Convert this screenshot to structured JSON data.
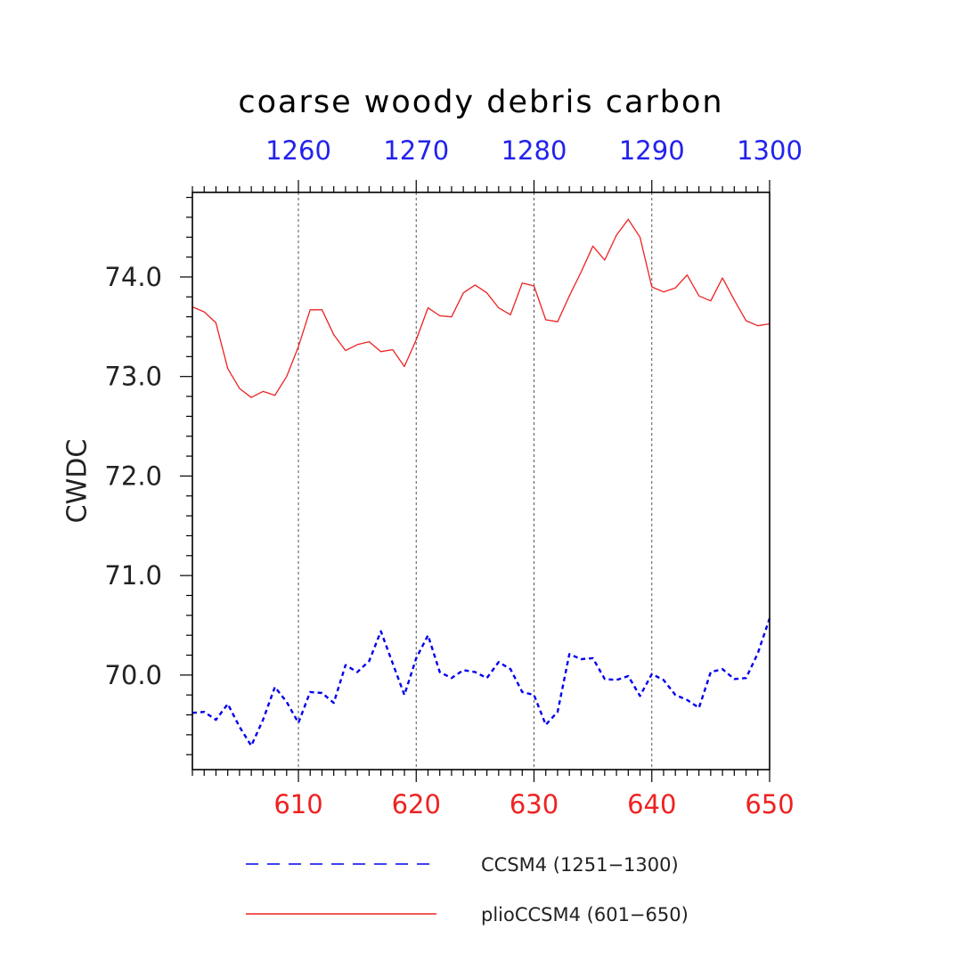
{
  "chart_data": {
    "type": "line",
    "title": "coarse woody debris carbon",
    "ylabel": "CWDC",
    "xlabel": "",
    "x_bottom": {
      "range": [
        601,
        650
      ],
      "ticks": [
        610,
        620,
        630,
        640,
        650
      ],
      "tick_labels": [
        "610",
        "620",
        "630",
        "640",
        "650"
      ],
      "color": "#ee2222"
    },
    "x_top": {
      "range": [
        1251,
        1300
      ],
      "ticks": [
        1260,
        1270,
        1280,
        1290,
        1300
      ],
      "tick_labels": [
        "1260",
        "1270",
        "1280",
        "1290",
        "1300"
      ],
      "color": "#2222ee"
    },
    "ylim": [
      69.05,
      74.85
    ],
    "yticks": [
      70.0,
      71.0,
      72.0,
      73.0,
      74.0
    ],
    "ytick_labels": [
      "70.0",
      "71.0",
      "72.0",
      "73.0",
      "74.0"
    ],
    "grid": "vertical dashed at major x ticks",
    "legend_placement": "bottom",
    "series": [
      {
        "name": "CCSM4 (1251−1300)",
        "color": "#0000ee",
        "style": "dashed",
        "axis": "top",
        "x": [
          1251,
          1252,
          1253,
          1254,
          1255,
          1256,
          1257,
          1258,
          1259,
          1260,
          1261,
          1262,
          1263,
          1264,
          1265,
          1266,
          1267,
          1268,
          1269,
          1270,
          1271,
          1272,
          1273,
          1274,
          1275,
          1276,
          1277,
          1278,
          1279,
          1280,
          1281,
          1282,
          1283,
          1284,
          1285,
          1286,
          1287,
          1288,
          1289,
          1290,
          1291,
          1292,
          1293,
          1294,
          1295,
          1296,
          1297,
          1298,
          1299,
          1300
        ],
        "values": [
          69.62,
          69.63,
          69.55,
          69.71,
          69.48,
          69.29,
          69.55,
          69.88,
          69.73,
          69.52,
          69.83,
          69.82,
          69.72,
          70.1,
          70.03,
          70.14,
          70.44,
          70.12,
          69.8,
          70.17,
          70.4,
          70.03,
          69.97,
          70.05,
          70.03,
          69.97,
          70.13,
          70.06,
          69.83,
          69.8,
          69.5,
          69.63,
          70.21,
          70.16,
          70.17,
          69.96,
          69.95,
          69.99,
          69.79,
          70.01,
          69.95,
          69.8,
          69.75,
          69.67,
          70.03,
          70.06,
          69.96,
          69.97,
          70.22,
          70.57
        ]
      },
      {
        "name": "plioCCSM4 (601−650)",
        "color": "#ee2222",
        "style": "solid",
        "axis": "bottom",
        "x": [
          601,
          602,
          603,
          604,
          605,
          606,
          607,
          608,
          609,
          610,
          611,
          612,
          613,
          614,
          615,
          616,
          617,
          618,
          619,
          620,
          621,
          622,
          623,
          624,
          625,
          626,
          627,
          628,
          629,
          630,
          631,
          632,
          633,
          634,
          635,
          636,
          637,
          638,
          639,
          640,
          641,
          642,
          643,
          644,
          645,
          646,
          647,
          648,
          649,
          650
        ],
        "values": [
          73.7,
          73.65,
          73.54,
          73.08,
          72.88,
          72.79,
          72.85,
          72.81,
          73.0,
          73.3,
          73.67,
          73.67,
          73.42,
          73.26,
          73.32,
          73.35,
          73.25,
          73.27,
          73.1,
          73.37,
          73.69,
          73.61,
          73.6,
          73.84,
          73.92,
          73.84,
          73.69,
          73.62,
          73.94,
          73.91,
          73.57,
          73.55,
          73.81,
          74.05,
          74.31,
          74.17,
          74.42,
          74.58,
          74.4,
          73.9,
          73.85,
          73.89,
          74.02,
          73.81,
          73.76,
          73.99,
          73.77,
          73.56,
          73.51,
          73.53
        ]
      }
    ]
  }
}
